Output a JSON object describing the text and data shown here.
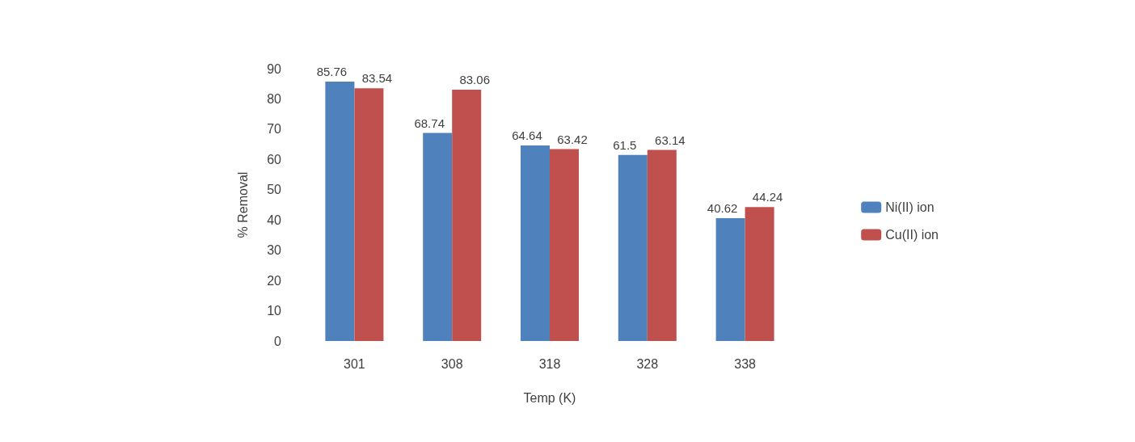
{
  "chart_data": {
    "type": "bar",
    "xlabel": "Temp (K)",
    "ylabel": "% Removal",
    "categories": [
      "301",
      "308",
      "318",
      "328",
      "338"
    ],
    "series": [
      {
        "name": "Ni(II) ion",
        "color": "#4f81bd",
        "values": [
          85.76,
          68.74,
          64.64,
          61.5,
          40.62
        ]
      },
      {
        "name": "Cu(II) ion",
        "color": "#c0504d",
        "values": [
          83.54,
          83.06,
          63.42,
          63.14,
          44.24
        ]
      }
    ],
    "ylim": [
      0,
      90
    ],
    "yticks": [
      0,
      10,
      20,
      30,
      40,
      50,
      60,
      70,
      80,
      90
    ],
    "data_labels": true,
    "legend": "right",
    "grid": false
  }
}
